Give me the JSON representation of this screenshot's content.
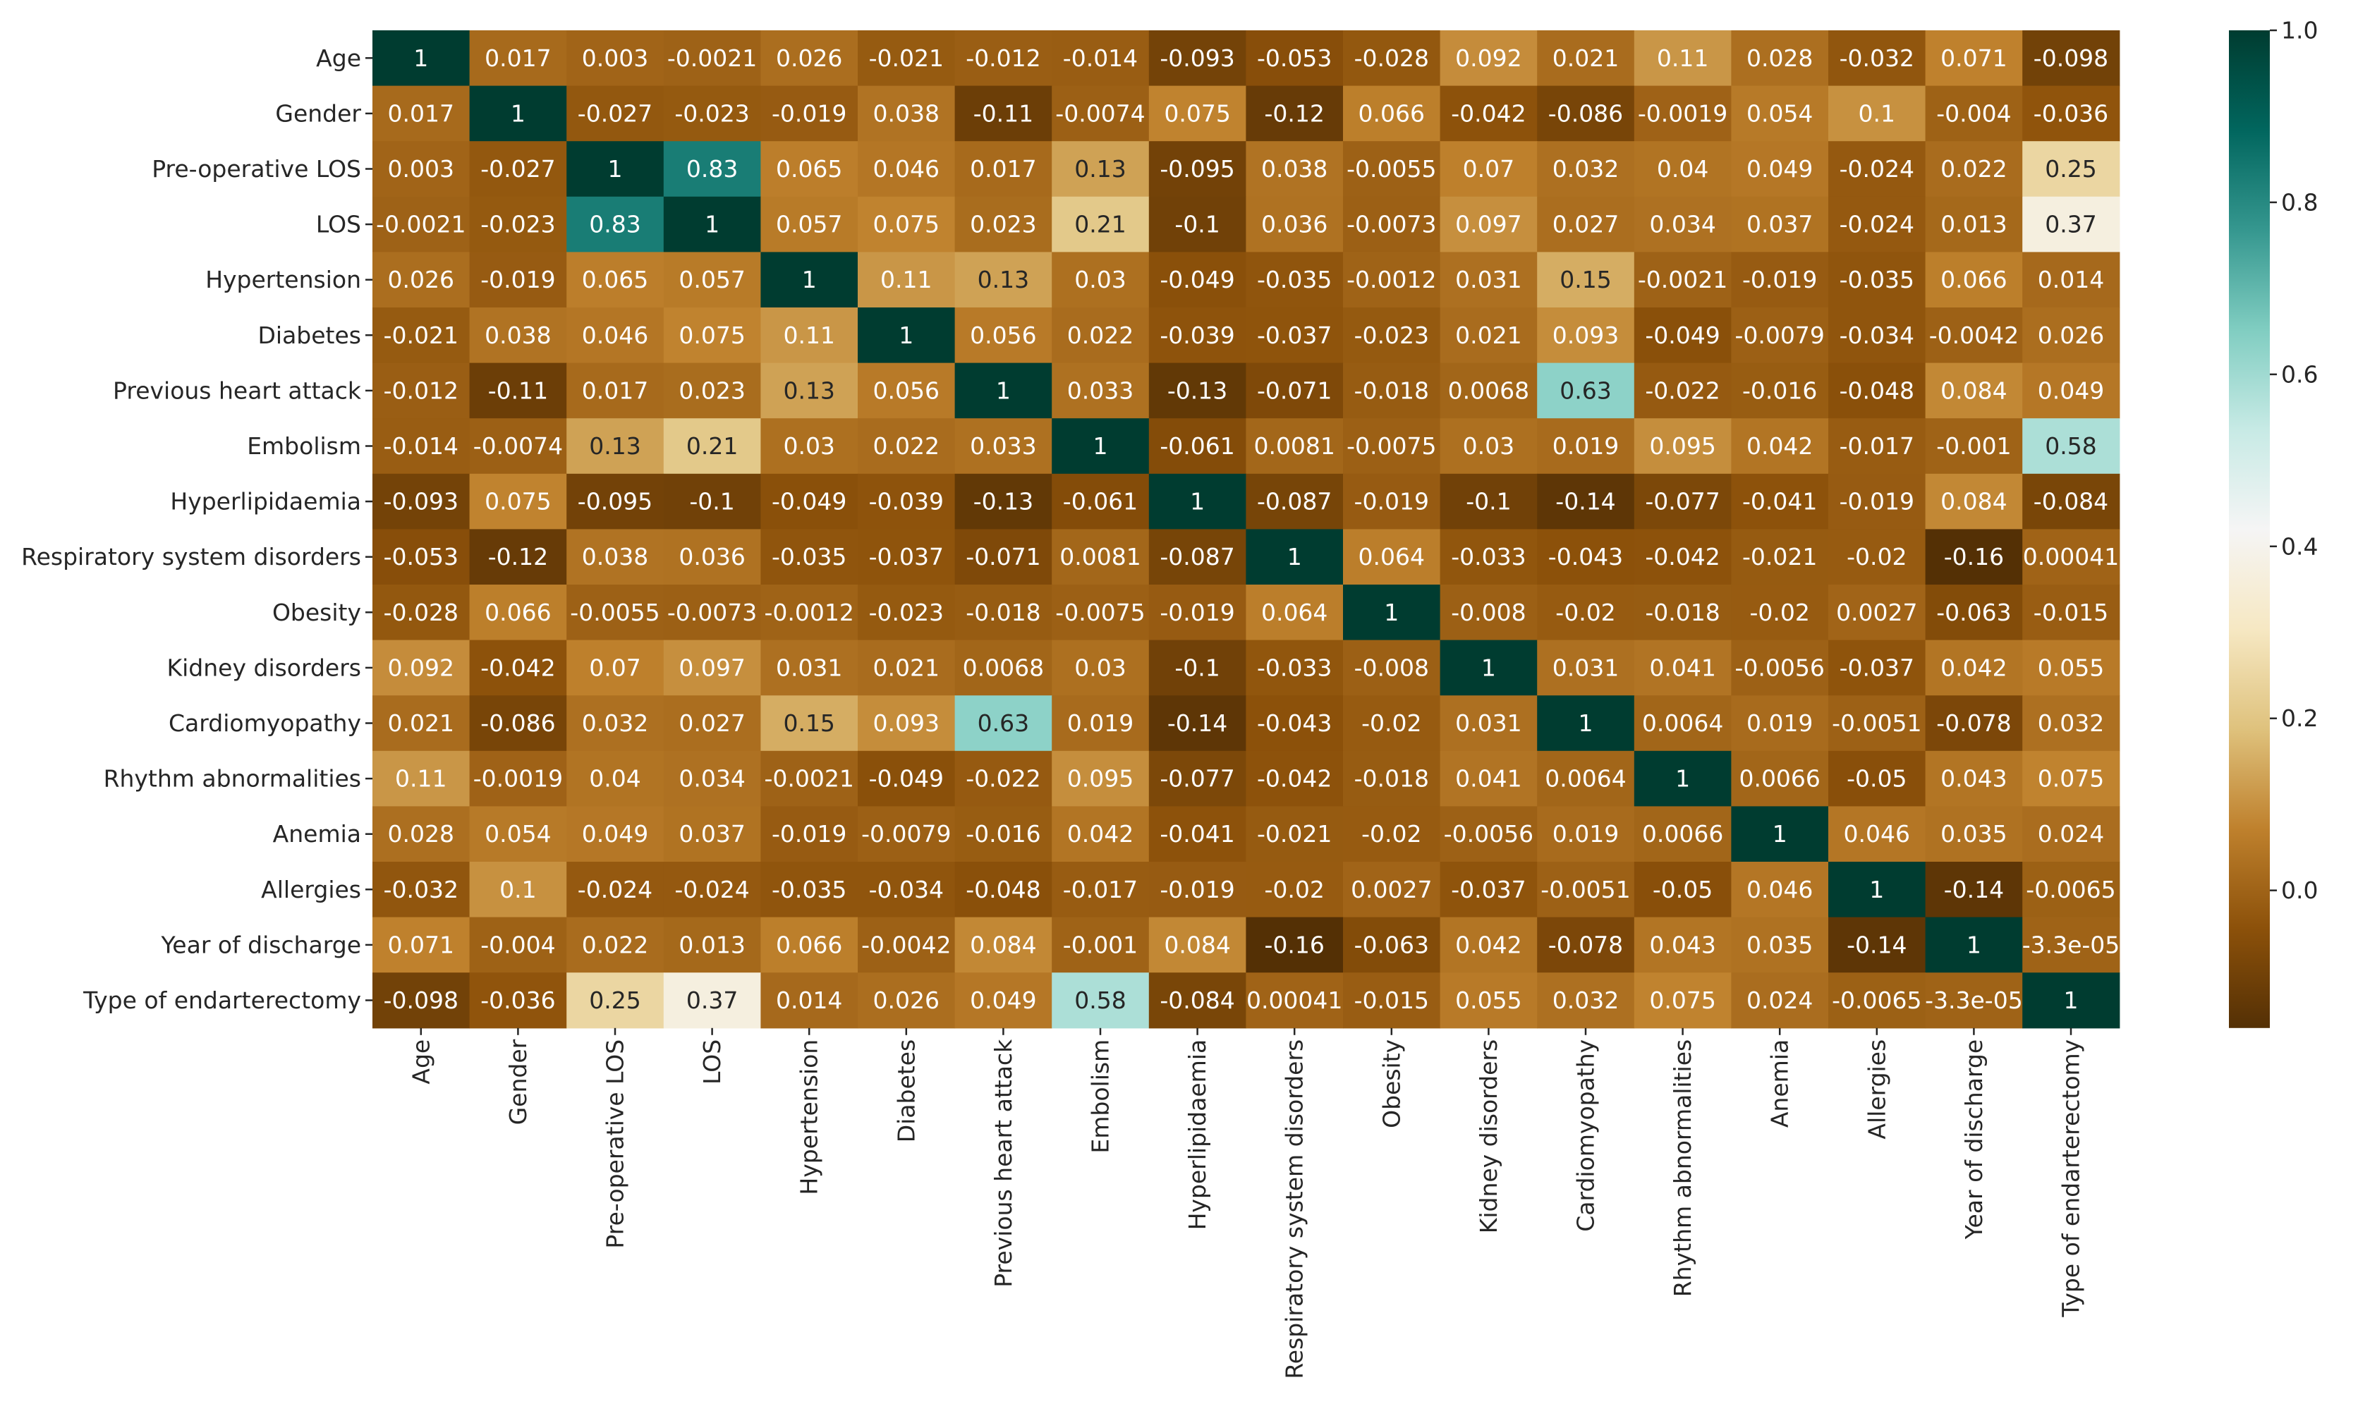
{
  "chart_data": {
    "type": "heatmap",
    "title": "",
    "labels": [
      "Age",
      "Gender",
      "Pre-operative LOS",
      "LOS",
      "Hypertension",
      "Diabetes",
      "Previous heart attack",
      "Embolism",
      "Hyperlipidaemia",
      "Respiratory system disorders",
      "Obesity",
      "Kidney disorders",
      "Cardiomyopathy",
      "Rhythm abnormalities",
      "Anemia",
      "Allergies",
      "Year of discharge",
      "Type of endarterectomy"
    ],
    "matrix": [
      [
        "1",
        "0.017",
        "0.003",
        "-0.0021",
        "0.026",
        "-0.021",
        "-0.012",
        "-0.014",
        "-0.093",
        "-0.053",
        "-0.028",
        "0.092",
        "0.021",
        "0.11",
        "0.028",
        "-0.032",
        "0.071",
        "-0.098"
      ],
      [
        "0.017",
        "1",
        "-0.027",
        "-0.023",
        "-0.019",
        "0.038",
        "-0.11",
        "-0.0074",
        "0.075",
        "-0.12",
        "0.066",
        "-0.042",
        "-0.086",
        "-0.0019",
        "0.054",
        "0.1",
        "-0.004",
        "-0.036"
      ],
      [
        "0.003",
        "-0.027",
        "1",
        "0.83",
        "0.065",
        "0.046",
        "0.017",
        "0.13",
        "-0.095",
        "0.038",
        "-0.0055",
        "0.07",
        "0.032",
        "0.04",
        "0.049",
        "-0.024",
        "0.022",
        "0.25"
      ],
      [
        "-0.0021",
        "-0.023",
        "0.83",
        "1",
        "0.057",
        "0.075",
        "0.023",
        "0.21",
        "-0.1",
        "0.036",
        "-0.0073",
        "0.097",
        "0.027",
        "0.034",
        "0.037",
        "-0.024",
        "0.013",
        "0.37"
      ],
      [
        "0.026",
        "-0.019",
        "0.065",
        "0.057",
        "1",
        "0.11",
        "0.13",
        "0.03",
        "-0.049",
        "-0.035",
        "-0.0012",
        "0.031",
        "0.15",
        "-0.0021",
        "-0.019",
        "-0.035",
        "0.066",
        "0.014"
      ],
      [
        "-0.021",
        "0.038",
        "0.046",
        "0.075",
        "0.11",
        "1",
        "0.056",
        "0.022",
        "-0.039",
        "-0.037",
        "-0.023",
        "0.021",
        "0.093",
        "-0.049",
        "-0.0079",
        "-0.034",
        "-0.0042",
        "0.026"
      ],
      [
        "-0.012",
        "-0.11",
        "0.017",
        "0.023",
        "0.13",
        "0.056",
        "1",
        "0.033",
        "-0.13",
        "-0.071",
        "-0.018",
        "0.0068",
        "0.63",
        "-0.022",
        "-0.016",
        "-0.048",
        "0.084",
        "0.049"
      ],
      [
        "-0.014",
        "-0.0074",
        "0.13",
        "0.21",
        "0.03",
        "0.022",
        "0.033",
        "1",
        "-0.061",
        "0.0081",
        "-0.0075",
        "0.03",
        "0.019",
        "0.095",
        "0.042",
        "-0.017",
        "-0.001",
        "0.58"
      ],
      [
        "-0.093",
        "0.075",
        "-0.095",
        "-0.1",
        "-0.049",
        "-0.039",
        "-0.13",
        "-0.061",
        "1",
        "-0.087",
        "-0.019",
        "-0.1",
        "-0.14",
        "-0.077",
        "-0.041",
        "-0.019",
        "0.084",
        "-0.084"
      ],
      [
        "-0.053",
        "-0.12",
        "0.038",
        "0.036",
        "-0.035",
        "-0.037",
        "-0.071",
        "0.0081",
        "-0.087",
        "1",
        "0.064",
        "-0.033",
        "-0.043",
        "-0.042",
        "-0.021",
        "-0.02",
        "-0.16",
        "0.00041"
      ],
      [
        "-0.028",
        "0.066",
        "-0.0055",
        "-0.0073",
        "-0.0012",
        "-0.023",
        "-0.018",
        "-0.0075",
        "-0.019",
        "0.064",
        "1",
        "-0.008",
        "-0.02",
        "-0.018",
        "-0.02",
        "0.0027",
        "-0.063",
        "-0.015"
      ],
      [
        "0.092",
        "-0.042",
        "0.07",
        "0.097",
        "0.031",
        "0.021",
        "0.0068",
        "0.03",
        "-0.1",
        "-0.033",
        "-0.008",
        "1",
        "0.031",
        "0.041",
        "-0.0056",
        "-0.037",
        "0.042",
        "0.055"
      ],
      [
        "0.021",
        "-0.086",
        "0.032",
        "0.027",
        "0.15",
        "0.093",
        "0.63",
        "0.019",
        "-0.14",
        "-0.043",
        "-0.02",
        "0.031",
        "1",
        "0.0064",
        "0.019",
        "-0.0051",
        "-0.078",
        "0.032"
      ],
      [
        "0.11",
        "-0.0019",
        "0.04",
        "0.034",
        "-0.0021",
        "-0.049",
        "-0.022",
        "0.095",
        "-0.077",
        "-0.042",
        "-0.018",
        "0.041",
        "0.0064",
        "1",
        "0.0066",
        "-0.05",
        "0.043",
        "0.075"
      ],
      [
        "0.028",
        "0.054",
        "0.049",
        "0.037",
        "-0.019",
        "-0.0079",
        "-0.016",
        "0.042",
        "-0.041",
        "-0.021",
        "-0.02",
        "-0.0056",
        "0.019",
        "0.0066",
        "1",
        "0.046",
        "0.035",
        "0.024"
      ],
      [
        "-0.032",
        "0.1",
        "-0.024",
        "-0.024",
        "-0.035",
        "-0.034",
        "-0.048",
        "-0.017",
        "-0.019",
        "-0.02",
        "0.0027",
        "-0.037",
        "-0.0051",
        "-0.05",
        "0.046",
        "1",
        "-0.14",
        "-0.0065"
      ],
      [
        "0.071",
        "-0.004",
        "0.022",
        "0.013",
        "0.066",
        "-0.0042",
        "0.084",
        "-0.001",
        "0.084",
        "-0.16",
        "-0.063",
        "0.042",
        "-0.078",
        "0.043",
        "0.035",
        "-0.14",
        "1",
        "-3.3e-05"
      ],
      [
        "-0.098",
        "-0.036",
        "0.25",
        "0.37",
        "0.014",
        "0.026",
        "0.049",
        "0.58",
        "-0.084",
        "0.00041",
        "-0.015",
        "0.055",
        "0.032",
        "0.075",
        "0.024",
        "-0.0065",
        "-3.3e-05",
        "1"
      ]
    ],
    "colorbar": {
      "min": -0.16,
      "max": 1.0,
      "ticks": [
        1.0,
        0.8,
        0.6,
        0.4,
        0.2,
        0.0
      ],
      "tick_labels": [
        "1.0",
        "0.8",
        "0.6",
        "0.4",
        "0.2",
        "0.0"
      ]
    },
    "colormap_stops": [
      "#543005",
      "#8c510a",
      "#bf812d",
      "#dfc27d",
      "#f6e8c3",
      "#f5f5f5",
      "#c7eae5",
      "#80cdc1",
      "#35978f",
      "#01665e",
      "#003c30"
    ],
    "light_text_color": "#ffffff",
    "dark_text_color": "#262626"
  }
}
